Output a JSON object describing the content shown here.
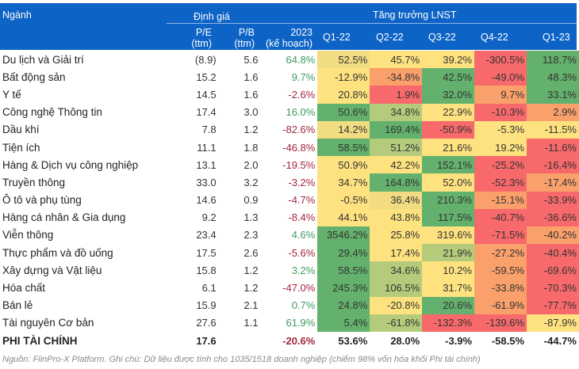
{
  "header": {
    "sector": "Ngành",
    "valuation": "Định giá",
    "growth": "Tăng trưởng LNST",
    "pe": [
      "P/E",
      "(ttm)"
    ],
    "pb": [
      "P/B",
      "(ttm)"
    ],
    "plan": [
      "2023",
      "(kế hoạch)"
    ],
    "quarters": [
      "Q1-22",
      "Q2-22",
      "Q3-22",
      "Q4-22",
      "Q1-23"
    ]
  },
  "colors": {
    "header": "#0d63c6",
    "G": "#63b16c",
    "LG": "#b5cb7c",
    "TY": "#f1dc82",
    "Y": "#fde27f",
    "O": "#f9a06b",
    "R": "#f8696b"
  },
  "rows": [
    {
      "name": "Du lịch và Giải trí",
      "pe": "(8.9)",
      "pb": "5.6",
      "plan": "64.8%",
      "q": [
        "52.5%",
        "45.7%",
        "39.2%",
        "-300.5%",
        "118.7%"
      ],
      "c": [
        "TY",
        "Y",
        "Y",
        "R",
        "G"
      ]
    },
    {
      "name": "Bất động sản",
      "pe": "15.2",
      "pb": "1.6",
      "plan": "9.7%",
      "q": [
        "-12.9%",
        "-34.8%",
        "42.5%",
        "-49.0%",
        "48.3%"
      ],
      "c": [
        "Y",
        "O",
        "G",
        "R",
        "G"
      ]
    },
    {
      "name": "Y tế",
      "pe": "14.5",
      "pb": "1.6",
      "plan": "-2.6%",
      "q": [
        "20.8%",
        "1.9%",
        "32.0%",
        "9.7%",
        "33.1%"
      ],
      "c": [
        "Y",
        "R",
        "G",
        "O",
        "G"
      ]
    },
    {
      "name": "Công nghệ Thông tin",
      "pe": "17.4",
      "pb": "3.0",
      "plan": "16.0%",
      "q": [
        "50.6%",
        "34.8%",
        "22.9%",
        "-10.3%",
        "2.9%"
      ],
      "c": [
        "G",
        "LG",
        "Y",
        "R",
        "O"
      ]
    },
    {
      "name": "Dầu khí",
      "pe": "7.8",
      "pb": "1.2",
      "plan": "-82.6%",
      "q": [
        "14.2%",
        "169.4%",
        "-50.9%",
        "-5.3%",
        "-11.5%"
      ],
      "c": [
        "TY",
        "G",
        "R",
        "Y",
        "Y"
      ]
    },
    {
      "name": "Tiện ích",
      "pe": "11.1",
      "pb": "1.8",
      "plan": "-46.8%",
      "q": [
        "58.5%",
        "51.2%",
        "21.6%",
        "19.2%",
        "-11.6%"
      ],
      "c": [
        "G",
        "LG",
        "Y",
        "Y",
        "R"
      ]
    },
    {
      "name": "Hàng & Dịch vụ công nghiệp",
      "pe": "13.1",
      "pb": "2.0",
      "plan": "-19.5%",
      "q": [
        "50.9%",
        "42.2%",
        "152.1%",
        "-25.2%",
        "-16.4%"
      ],
      "c": [
        "Y",
        "Y",
        "G",
        "R",
        "R"
      ]
    },
    {
      "name": "Truyền thông",
      "pe": "33.0",
      "pb": "3.2",
      "plan": "-3.2%",
      "q": [
        "34.7%",
        "164.8%",
        "52.0%",
        "-52.3%",
        "-17.4%"
      ],
      "c": [
        "Y",
        "G",
        "Y",
        "R",
        "O"
      ]
    },
    {
      "name": "Ô tô và phụ tùng",
      "pe": "14.6",
      "pb": "0.9",
      "plan": "-4.7%",
      "q": [
        "-0.5%",
        "36.4%",
        "210.3%",
        "-15.1%",
        "-33.9%"
      ],
      "c": [
        "Y",
        "TY",
        "G",
        "O",
        "R"
      ]
    },
    {
      "name": "Hàng cá nhân & Gia dụng",
      "pe": "9.2",
      "pb": "1.3",
      "plan": "-8.4%",
      "q": [
        "44.1%",
        "43.8%",
        "117.5%",
        "-40.7%",
        "-36.6%"
      ],
      "c": [
        "Y",
        "Y",
        "G",
        "R",
        "R"
      ]
    },
    {
      "name": "Viễn thông",
      "pe": "23.4",
      "pb": "2.3",
      "plan": "4.6%",
      "q": [
        "3546.2%",
        "25.8%",
        "319.6%",
        "-71.5%",
        "-40.2%"
      ],
      "c": [
        "G",
        "Y",
        "Y",
        "R",
        "O"
      ]
    },
    {
      "name": "Thực phẩm và đồ uống",
      "pe": "17.5",
      "pb": "2.6",
      "plan": "-5.6%",
      "q": [
        "29.4%",
        "17.4%",
        "21.9%",
        "-27.2%",
        "-40.4%"
      ],
      "c": [
        "G",
        "Y",
        "LG",
        "O",
        "R"
      ]
    },
    {
      "name": "Xây dựng và Vật liệu",
      "pe": "15.8",
      "pb": "1.2",
      "plan": "3.2%",
      "q": [
        "58.5%",
        "34.6%",
        "10.2%",
        "-59.5%",
        "-69.6%"
      ],
      "c": [
        "G",
        "LG",
        "Y",
        "O",
        "R"
      ]
    },
    {
      "name": "Hóa chất",
      "pe": "6.1",
      "pb": "1.2",
      "plan": "-47.0%",
      "q": [
        "245.3%",
        "106.5%",
        "31.7%",
        "-33.8%",
        "-70.3%"
      ],
      "c": [
        "G",
        "LG",
        "Y",
        "O",
        "R"
      ]
    },
    {
      "name": "Bán lẻ",
      "pe": "15.9",
      "pb": "2.1",
      "plan": "0.7%",
      "q": [
        "24.8%",
        "-20.8%",
        "20.6%",
        "-61.9%",
        "-77.7%"
      ],
      "c": [
        "G",
        "Y",
        "G",
        "O",
        "R"
      ]
    },
    {
      "name": "Tài nguyên Cơ bản",
      "pe": "27.6",
      "pb": "1.1",
      "plan": "61.9%",
      "q": [
        "5.4%",
        "-61.8%",
        "-132.3%",
        "-139.6%",
        "-87.9%"
      ],
      "c": [
        "G",
        "LG",
        "R",
        "R",
        "Y"
      ]
    }
  ],
  "total": {
    "name": "PHI TÀI CHÍNH",
    "pe": "17.6",
    "pb": "",
    "plan": "-20.6%",
    "q": [
      "53.6%",
      "28.0%",
      "-3.9%",
      "-58.5%",
      "-44.7%"
    ]
  },
  "footnote": "Nguồn: FiinPro-X Platform. Ghi chú: Dữ liệu được tính cho 1035/1518 doanh nghiệp (chiếm 98% vốn hóa khối Phi tài chính)"
}
